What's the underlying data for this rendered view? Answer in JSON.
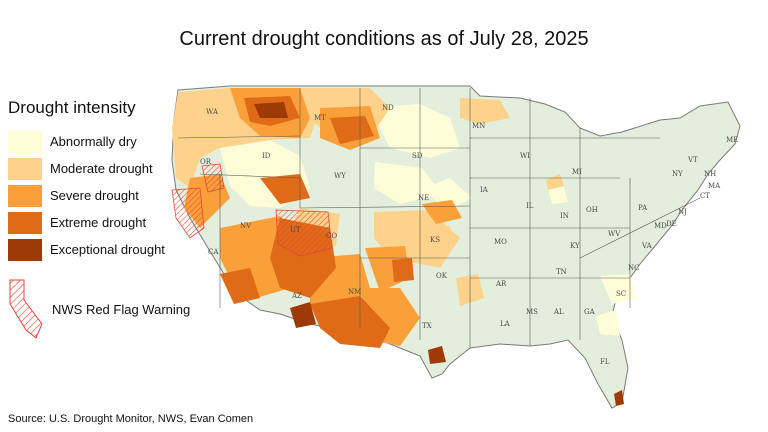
{
  "title": "Current drought conditions as of July 28, 2025",
  "legend": {
    "heading": "Drought intensity",
    "items": [
      {
        "label": "Abnormally dry",
        "color": "#fffdd8"
      },
      {
        "label": "Moderate drought",
        "color": "#fdd38c"
      },
      {
        "label": "Severe drought",
        "color": "#f9a03a"
      },
      {
        "label": "Extreme drought",
        "color": "#df6a17"
      },
      {
        "label": "Exceptional drought",
        "color": "#9e3a05"
      }
    ],
    "red_flag_label": "NWS Red Flag Warning",
    "red_flag_color": "#e8443a"
  },
  "map": {
    "base_color": "#e3efdc",
    "states": [
      "WA",
      "OR",
      "CA",
      "ID",
      "NV",
      "MT",
      "WY",
      "UT",
      "AZ",
      "CO",
      "NM",
      "ND",
      "SD",
      "NE",
      "KS",
      "OK",
      "TX",
      "MN",
      "IA",
      "MO",
      "AR",
      "LA",
      "WI",
      "IL",
      "MI",
      "IN",
      "OH",
      "KY",
      "TN",
      "MS",
      "AL",
      "GA",
      "FL",
      "SC",
      "NC",
      "VA",
      "WV",
      "PA",
      "NY",
      "ME",
      "VT",
      "NH",
      "MA",
      "CT",
      "NJ",
      "DE",
      "MD"
    ]
  },
  "source": "Source: U.S. Drought Monitor, NWS, Evan Comen"
}
